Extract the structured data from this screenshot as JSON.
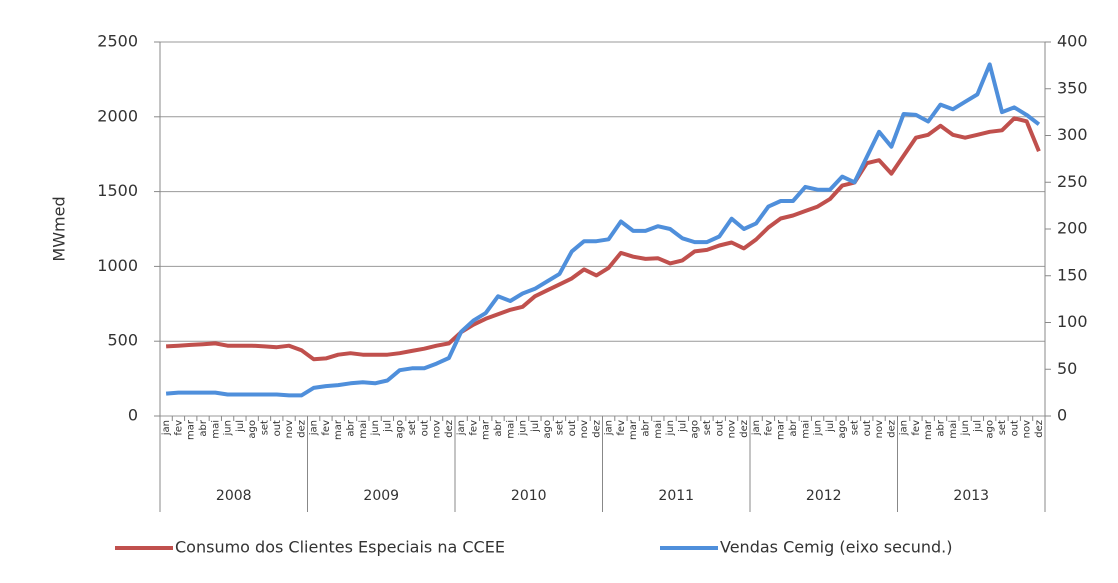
{
  "chart_data": {
    "type": "line",
    "ylabel": "MWmed",
    "categories": [
      "jan",
      "fev",
      "mar",
      "abr",
      "mai",
      "jun",
      "jul",
      "ago",
      "set",
      "out",
      "nov",
      "dez",
      "jan",
      "fev",
      "mar",
      "abr",
      "mai",
      "jun",
      "jul",
      "ago",
      "set",
      "out",
      "nov",
      "dez",
      "jan",
      "fev",
      "mar",
      "abr",
      "mai",
      "jun",
      "jul",
      "ago",
      "set",
      "out",
      "nov",
      "dez",
      "jan",
      "fev",
      "mar",
      "abr",
      "mai",
      "jun",
      "jul",
      "ago",
      "set",
      "out",
      "nov",
      "dez",
      "jan",
      "fev",
      "mar",
      "abr",
      "mai",
      "jun",
      "jul",
      "ago",
      "set",
      "out",
      "nov",
      "dez",
      "jan",
      "fev",
      "mar",
      "abr",
      "mai",
      "jun",
      "jul",
      "ago",
      "set",
      "out",
      "nov",
      "dez"
    ],
    "years": [
      "2008",
      "2009",
      "2010",
      "2011",
      "2012",
      "2013"
    ],
    "ylim": [
      0,
      2500
    ],
    "yticks": [
      0,
      500,
      1000,
      1500,
      2000,
      2500
    ],
    "y2lim": [
      0,
      400
    ],
    "y2ticks": [
      0,
      50,
      100,
      150,
      200,
      250,
      300,
      350,
      400
    ],
    "grid": true,
    "series": [
      {
        "name": "Consumo dos Clientes Especiais na CCEE",
        "color": "#c0504d",
        "axis": "y",
        "values": [
          465,
          470,
          475,
          480,
          485,
          470,
          470,
          470,
          465,
          460,
          470,
          440,
          380,
          385,
          410,
          420,
          410,
          410,
          410,
          420,
          435,
          450,
          470,
          485,
          560,
          610,
          650,
          680,
          710,
          730,
          800,
          840,
          880,
          920,
          980,
          940,
          990,
          1090,
          1065,
          1050,
          1055,
          1020,
          1040,
          1100,
          1110,
          1140,
          1160,
          1120,
          1180,
          1260,
          1320,
          1340,
          1370,
          1400,
          1450,
          1540,
          1560,
          1690,
          1710,
          1620,
          1740,
          1860,
          1880,
          1940,
          1880,
          1860,
          1880,
          1900,
          1910,
          1990,
          1970,
          1770
        ]
      },
      {
        "name": "Vendas Cemig (eixo secund.)",
        "color": "#4f8fdb",
        "axis": "y2",
        "values": [
          24,
          25,
          25,
          25,
          25,
          23,
          23,
          23,
          23,
          23,
          22,
          22,
          30,
          32,
          33,
          35,
          36,
          35,
          38,
          49,
          51,
          51,
          56,
          62,
          90,
          102,
          110,
          128,
          123,
          131,
          136,
          144,
          152,
          176,
          187,
          187,
          189,
          208,
          198,
          198,
          203,
          200,
          190,
          186,
          186,
          192,
          211,
          200,
          206,
          224,
          230,
          230,
          245,
          242,
          242,
          256,
          250,
          277,
          304,
          288,
          323,
          322,
          315,
          333,
          328,
          336,
          344,
          376,
          325,
          330,
          322,
          312
        ]
      }
    ]
  }
}
